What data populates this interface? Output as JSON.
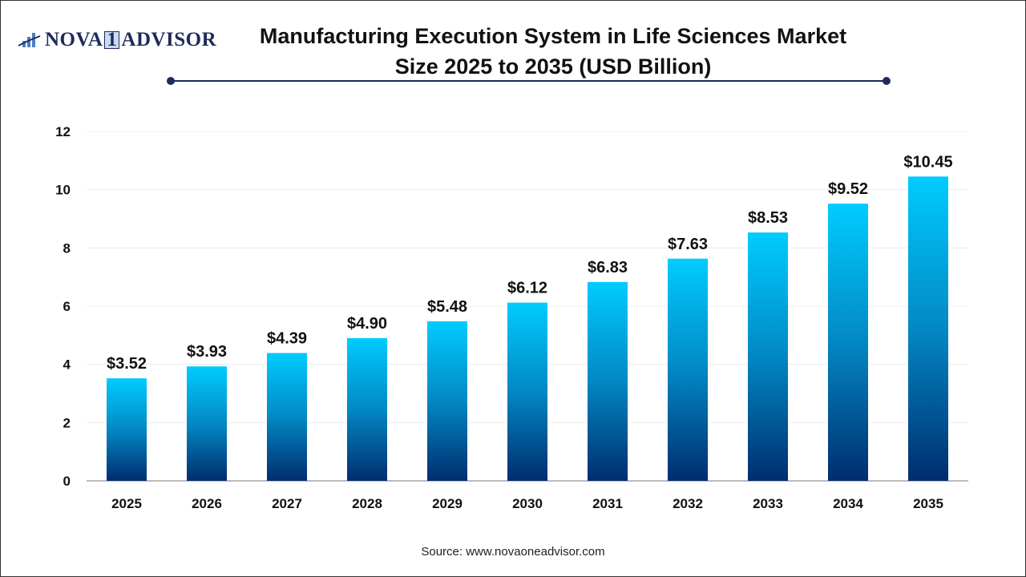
{
  "logo": {
    "text_left": "NOVA",
    "text_mid": "1",
    "text_right": "ADVISOR"
  },
  "title": {
    "line1": "Manufacturing Execution System in Life Sciences Market",
    "line2": "Size 2025 to 2035 (USD Billion)"
  },
  "source": "Source: www.novaoneadvisor.com",
  "colors": {
    "bar_top": "#00CCFF",
    "bar_bottom": "#002D6E",
    "title_rule": "#1F2A5C"
  },
  "chart_data": {
    "type": "bar",
    "title": "Manufacturing Execution System in Life Sciences Market Size 2025 to 2035 (USD Billion)",
    "categories": [
      "2025",
      "2026",
      "2027",
      "2028",
      "2029",
      "2030",
      "2031",
      "2032",
      "2033",
      "2034",
      "2035"
    ],
    "values": [
      3.52,
      3.93,
      4.39,
      4.9,
      5.48,
      6.12,
      6.83,
      7.63,
      8.53,
      9.52,
      10.45
    ],
    "data_labels": [
      "$3.52",
      "$3.93",
      "$4.39",
      "$4.90",
      "$5.48",
      "$6.12",
      "$6.83",
      "$7.63",
      "$8.53",
      "$9.52",
      "$10.45"
    ],
    "yticks": [
      0,
      2,
      4,
      6,
      8,
      10,
      12
    ],
    "ylim": [
      0,
      12
    ],
    "grid": true,
    "xlabel": "",
    "ylabel": ""
  }
}
